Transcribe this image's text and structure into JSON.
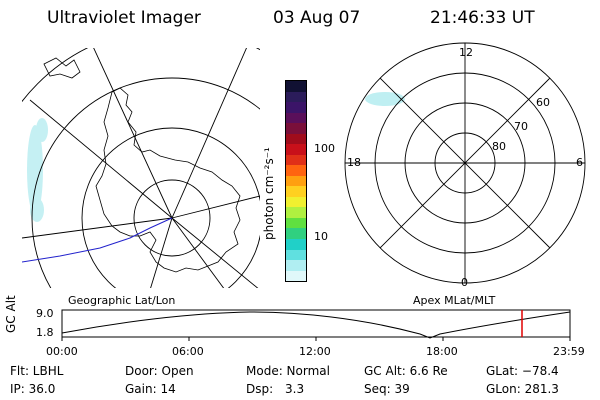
{
  "header": {
    "instrument": "Ultraviolet Imager",
    "date": "03 Aug 07",
    "time": "21:46:33 UT"
  },
  "colorbar": {
    "unit_label": "photon cm⁻²s⁻¹",
    "ticks": [
      "100",
      "10"
    ],
    "colors": [
      "#111133",
      "#2b1c5a",
      "#3b1468",
      "#5a0f5a",
      "#7a0f3a",
      "#a00c1c",
      "#c8101a",
      "#e03018",
      "#ff6410",
      "#ffa010",
      "#ffd020",
      "#f0f030",
      "#b0f040",
      "#60e040",
      "#30d080",
      "#20d0c8",
      "#60e0e0",
      "#b0eef2",
      "#e0f8fa"
    ]
  },
  "left_map": {
    "label": "Geographic Lat/Lon"
  },
  "right_map": {
    "label": "Apex  MLat/MLT",
    "mlt_labels": {
      "top": "12",
      "bottom": "0",
      "left": "18",
      "right": "6"
    },
    "lat_labels": [
      "60",
      "70",
      "80"
    ]
  },
  "timeline": {
    "axis_label": "GC Alt",
    "y_ticks": [
      "9.0",
      "1.8"
    ],
    "x_ticks": [
      "00:00",
      "06:00",
      "12:00",
      "18:00",
      "23:59"
    ],
    "marker_time": "21:46:33",
    "marker_color": "#e00000"
  },
  "status": {
    "filter": "Flt: LBHL",
    "ip": "IP: 36.0",
    "door": "Door: Open",
    "gain": "Gain: 14",
    "mode": "Mode: Normal",
    "dsp_label": "Dsp:",
    "dsp_value": "3.3",
    "gc_alt": "GC Alt: 6.6 Re",
    "seq": "Seq: 39",
    "glat": "GLat: −78.4",
    "glon": "GLon: 281.3"
  }
}
